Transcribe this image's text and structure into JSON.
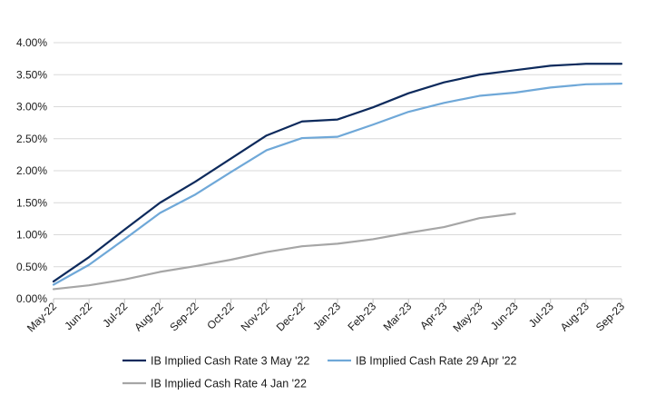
{
  "chart_data": {
    "type": "line",
    "title": "",
    "xlabel": "",
    "ylabel": "",
    "ylim": [
      0,
      4
    ],
    "y_ticks": [
      "0.00%",
      "0.50%",
      "1.00%",
      "1.50%",
      "2.00%",
      "2.50%",
      "3.00%",
      "3.50%",
      "4.00%"
    ],
    "categories": [
      "May-22",
      "Jun-22",
      "Jul-22",
      "Aug-22",
      "Sep-22",
      "Oct-22",
      "Nov-22",
      "Dec-22",
      "Jan-23",
      "Feb-23",
      "Mar-23",
      "Apr-23",
      "May-23",
      "Jun-23",
      "Jul-23",
      "Aug-23",
      "Sep-23"
    ],
    "grid": true,
    "legend_position": "bottom",
    "series": [
      {
        "name": "IB Implied Cash Rate 3 May '22",
        "color": "#0d2a5c",
        "values": [
          0.27,
          0.65,
          1.08,
          1.5,
          1.83,
          2.19,
          2.55,
          2.77,
          2.8,
          2.99,
          3.21,
          3.38,
          3.5,
          3.57,
          3.64,
          3.67,
          3.67
        ]
      },
      {
        "name": "IB Implied Cash Rate 29 Apr '22",
        "color": "#6fa8d8",
        "values": [
          0.22,
          0.53,
          0.93,
          1.34,
          1.63,
          1.98,
          2.32,
          2.51,
          2.53,
          2.72,
          2.92,
          3.06,
          3.17,
          3.22,
          3.3,
          3.35,
          3.36
        ]
      },
      {
        "name": "IB Implied Cash Rate 4 Jan '22",
        "color": "#a6a6a6",
        "values": [
          0.15,
          0.21,
          0.3,
          0.42,
          0.51,
          0.61,
          0.73,
          0.82,
          0.86,
          0.93,
          1.03,
          1.12,
          1.26,
          1.33,
          null,
          null,
          null
        ]
      }
    ]
  }
}
